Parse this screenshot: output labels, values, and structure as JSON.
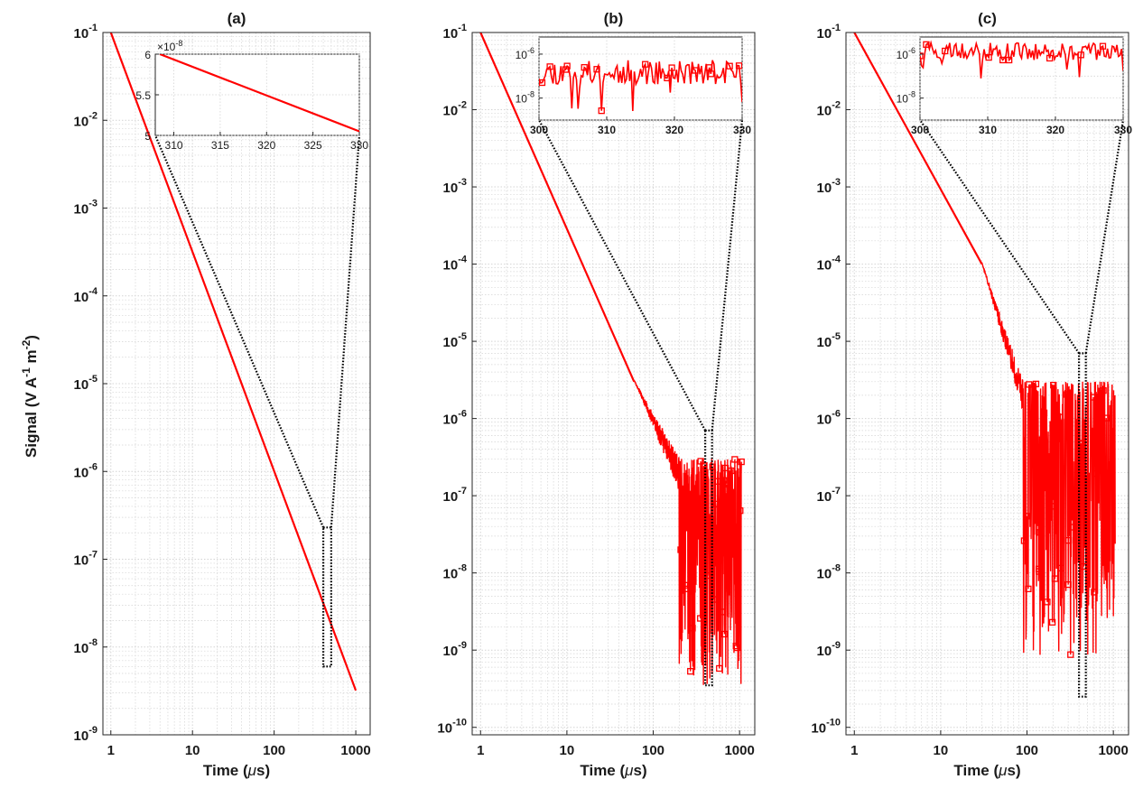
{
  "figure": {
    "ylabel_main": "Signal (V A",
    "ylabel_exp1": "-1",
    "ylabel_mid": " m",
    "ylabel_exp2": "-2",
    "ylabel_end": ")",
    "xlabel_main": "Time (",
    "xlabel_mu": "μ",
    "xlabel_end": "s)"
  },
  "colors": {
    "signal": "#ff0000",
    "zoom_outline": "#000000",
    "grid": "#d4d4d4",
    "axes": "#262626"
  },
  "chart_data": [
    {
      "type": "line",
      "title": "(a)",
      "xscale": "log",
      "yscale": "log",
      "xlim": [
        0.8,
        1500
      ],
      "ylim": [
        1e-09,
        0.1
      ],
      "xticks": [
        1,
        10,
        100,
        1000
      ],
      "xtick_labels": [
        "1",
        "10",
        "100",
        "1000"
      ],
      "yticks": [
        1e-09,
        1e-08,
        1e-07,
        1e-06,
        1e-05,
        0.0001,
        0.001,
        0.01,
        0.1
      ],
      "ytick_exponents": [
        "-9",
        "-8",
        "-7",
        "-6",
        "-5",
        "-4",
        "-3",
        "-2",
        "-1"
      ],
      "grid": true,
      "series": [
        {
          "style": "line",
          "x": [
            1,
            1000
          ],
          "y": [
            0.1,
            3.2e-09
          ]
        }
      ],
      "zoom_box": {
        "x": [
          400,
          500
        ],
        "y": [
          6e-09,
          2.3e-07
        ]
      },
      "inset": {
        "xscale": "linear",
        "yscale": "linear",
        "xlim": [
          308,
          330
        ],
        "ylim": [
          5.0,
          6.0
        ],
        "xticks": [
          310,
          315,
          320,
          325,
          330
        ],
        "xtick_labels": [
          "310",
          "315",
          "320",
          "325",
          "330"
        ],
        "yticks": [
          5.0,
          5.5,
          6.0
        ],
        "ytick_labels": [
          "5",
          "5.5",
          "6"
        ],
        "multiplier_base": "×10",
        "multiplier_exp": "-8",
        "series": [
          {
            "x": [
              308.5,
              330
            ],
            "y": [
              6.0,
              5.05
            ]
          }
        ]
      }
    },
    {
      "type": "line",
      "title": "(b)",
      "xscale": "log",
      "yscale": "log",
      "xlim": [
        0.8,
        1500
      ],
      "ylim": [
        8e-11,
        0.1
      ],
      "xticks": [
        1,
        10,
        100,
        1000
      ],
      "xtick_labels": [
        "1",
        "10",
        "100",
        "1000"
      ],
      "yticks": [
        1e-10,
        1e-09,
        1e-08,
        1e-07,
        1e-06,
        1e-05,
        0.0001,
        0.001,
        0.01,
        0.1
      ],
      "ytick_exponents": [
        "-10",
        "-9",
        "-8",
        "-7",
        "-6",
        "-5",
        "-4",
        "-3",
        "-2",
        "-1"
      ],
      "grid": true,
      "series": [
        {
          "style": "line",
          "x": [
            1,
            60
          ],
          "y": [
            0.1,
            3e-06
          ]
        },
        {
          "style": "noise",
          "x_start": 60,
          "x_knee": 200,
          "x_end": 1050,
          "floor": 3e-07,
          "min": 4e-10,
          "seed": 7
        }
      ],
      "zoom_box": {
        "x": [
          400,
          480
        ],
        "y": [
          3.5e-10,
          7e-07
        ]
      },
      "inset": {
        "xscale": "linear",
        "yscale": "log",
        "xlim": [
          300,
          330
        ],
        "ylim": [
          1e-09,
          6e-06
        ],
        "xticks": [
          300,
          310,
          320,
          330
        ],
        "xtick_labels": [
          "300",
          "310",
          "320",
          "330"
        ],
        "yticks": [
          1e-08,
          1e-06
        ],
        "ytick_exponents": [
          "-8",
          "-6"
        ],
        "series": [
          {
            "style": "noise",
            "center": 1e-07,
            "spread": 1.4,
            "seed": 11
          }
        ]
      }
    },
    {
      "type": "line",
      "title": "(c)",
      "xscale": "log",
      "yscale": "log",
      "xlim": [
        0.8,
        1500
      ],
      "ylim": [
        8e-11,
        0.1
      ],
      "xticks": [
        1,
        10,
        100,
        1000
      ],
      "xtick_labels": [
        "1",
        "10",
        "100",
        "1000"
      ],
      "yticks": [
        1e-10,
        1e-09,
        1e-08,
        1e-07,
        1e-06,
        1e-05,
        0.0001,
        0.001,
        0.01,
        0.1
      ],
      "ytick_exponents": [
        "-10",
        "-9",
        "-8",
        "-7",
        "-6",
        "-5",
        "-4",
        "-3",
        "-2",
        "-1"
      ],
      "grid": true,
      "series": [
        {
          "style": "line",
          "x": [
            1,
            30
          ],
          "y": [
            0.1,
            0.0001
          ]
        },
        {
          "style": "noise",
          "x_start": 30,
          "x_knee": 90,
          "x_end": 1050,
          "floor": 3e-06,
          "min": 1e-09,
          "seed": 23
        }
      ],
      "zoom_box": {
        "x": [
          400,
          480
        ],
        "y": [
          2.5e-10,
          7e-06
        ]
      },
      "inset": {
        "xscale": "linear",
        "yscale": "log",
        "xlim": [
          300,
          330
        ],
        "ylim": [
          1e-09,
          6e-06
        ],
        "xticks": [
          300,
          310,
          320,
          330
        ],
        "xtick_labels": [
          "300",
          "310",
          "320",
          "330"
        ],
        "yticks": [
          1e-08,
          1e-06
        ],
        "ytick_exponents": [
          "-8",
          "-6"
        ],
        "series": [
          {
            "style": "noise",
            "center": 1e-06,
            "spread": 1.0,
            "seed": 31
          }
        ]
      }
    }
  ]
}
